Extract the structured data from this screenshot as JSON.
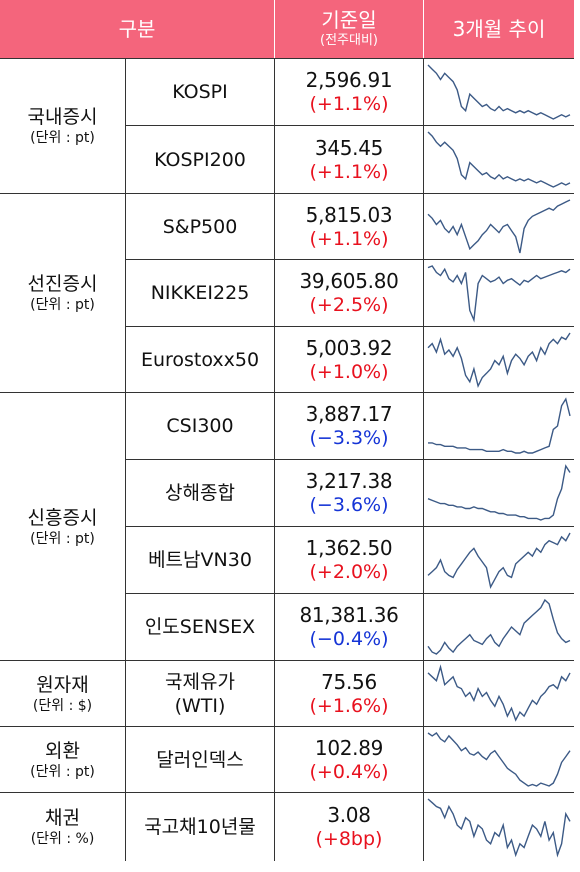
{
  "header": {
    "category_label": "구분",
    "value_label": "기준일",
    "value_sublabel": "(전주대비)",
    "trend_label": "3개월 추이"
  },
  "colors": {
    "header_bg": "#f4657c",
    "header_text": "#ffffff",
    "up": "#e8111e",
    "down": "#1534d6",
    "sparkline": "#3c5a86"
  },
  "groups": [
    {
      "name": "국내증시",
      "unit": "(단위 : pt)"
    },
    {
      "name": "선진증시",
      "unit": "(단위 : pt)"
    },
    {
      "name": "신흥증시",
      "unit": "(단위 : pt)"
    },
    {
      "name": "원자재",
      "unit": "(단위 : $)"
    },
    {
      "name": "외환",
      "unit": "(단위 : pt)"
    },
    {
      "name": "채권",
      "unit": "(단위 : %)"
    }
  ],
  "rows": [
    {
      "name": "KOSPI",
      "value": "2,596.91",
      "change": "(+1.1%)",
      "direction": "up",
      "trend": [
        62,
        60,
        58,
        55,
        58,
        56,
        54,
        50,
        42,
        40,
        48,
        46,
        44,
        42,
        43,
        41,
        40,
        42,
        40,
        41,
        40,
        39,
        40,
        39,
        40,
        39,
        38,
        39,
        38,
        37,
        36,
        37,
        38,
        37,
        38
      ]
    },
    {
      "name": "KOSPI200",
      "value": "345.45",
      "change": "(+1.1%)",
      "direction": "up",
      "trend": [
        62,
        60,
        57,
        55,
        57,
        55,
        53,
        49,
        41,
        39,
        47,
        45,
        43,
        41,
        42,
        40,
        39,
        41,
        39,
        40,
        39,
        38,
        39,
        38,
        39,
        38,
        37,
        38,
        37,
        36,
        35,
        36,
        37,
        36,
        37
      ]
    },
    {
      "name": "S&P500",
      "value": "5,815.03",
      "change": "(+1.1%)",
      "direction": "up",
      "trend": [
        55,
        53,
        50,
        52,
        48,
        46,
        49,
        45,
        50,
        44,
        38,
        40,
        42,
        45,
        47,
        50,
        48,
        46,
        49,
        50,
        47,
        44,
        36,
        48,
        52,
        54,
        55,
        56,
        57,
        58,
        57,
        59,
        60,
        61,
        62
      ]
    },
    {
      "name": "NIKKEI225",
      "value": "39,605.80",
      "change": "(+2.5%)",
      "direction": "up",
      "trend": [
        55,
        56,
        52,
        50,
        54,
        48,
        46,
        50,
        45,
        52,
        28,
        22,
        45,
        50,
        48,
        46,
        47,
        49,
        45,
        47,
        48,
        46,
        44,
        47,
        46,
        48,
        50,
        48,
        49,
        50,
        51,
        52,
        53,
        52,
        54
      ]
    },
    {
      "name": "Eurostoxx50",
      "value": "5,003.92",
      "change": "(+1.0%)",
      "direction": "up",
      "trend": [
        48,
        50,
        46,
        52,
        45,
        47,
        44,
        48,
        43,
        35,
        32,
        38,
        30,
        34,
        36,
        38,
        42,
        40,
        44,
        36,
        42,
        45,
        43,
        40,
        44,
        46,
        42,
        48,
        45,
        50,
        52,
        50,
        53,
        52,
        55
      ]
    },
    {
      "name": "CSI300",
      "value": "3,887.17",
      "change": "(−3.3%)",
      "direction": "down",
      "trend": [
        40,
        40,
        39,
        39,
        38,
        38,
        38,
        37,
        37,
        37,
        36,
        36,
        36,
        36,
        35,
        35,
        35,
        35,
        36,
        35,
        35,
        34,
        34,
        35,
        34,
        34,
        35,
        36,
        37,
        38,
        48,
        50,
        62,
        66,
        56
      ]
    },
    {
      "name": "상해종합",
      "value": "3,217.38",
      "change": "(−3.6%)",
      "direction": "down",
      "trend": [
        40,
        39,
        38,
        37,
        37,
        36,
        36,
        35,
        35,
        34,
        34,
        35,
        34,
        34,
        33,
        32,
        32,
        31,
        31,
        30,
        30,
        30,
        29,
        29,
        28,
        28,
        28,
        27,
        28,
        28,
        30,
        40,
        46,
        60,
        56
      ]
    },
    {
      "name": "베트남VN30",
      "value": "1,362.50",
      "change": "(+2.0%)",
      "direction": "up",
      "trend": [
        36,
        38,
        40,
        44,
        38,
        36,
        35,
        39,
        42,
        45,
        48,
        50,
        46,
        43,
        40,
        30,
        34,
        38,
        40,
        36,
        35,
        42,
        44,
        46,
        48,
        46,
        50,
        48,
        52,
        54,
        53,
        52,
        56,
        54,
        58
      ]
    },
    {
      "name": "인도SENSEX",
      "value": "81,381.36",
      "change": "(−0.4%)",
      "direction": "down",
      "trend": [
        38,
        35,
        34,
        36,
        40,
        37,
        35,
        38,
        40,
        42,
        44,
        41,
        40,
        39,
        42,
        44,
        40,
        38,
        42,
        45,
        48,
        46,
        44,
        50,
        52,
        54,
        56,
        58,
        62,
        60,
        52,
        45,
        42,
        40,
        41
      ]
    },
    {
      "name": "국제유가\n(WTI)",
      "value": "75.56",
      "change": "(+1.6%)",
      "direction": "up",
      "trend": [
        52,
        50,
        48,
        55,
        46,
        48,
        50,
        45,
        44,
        40,
        42,
        38,
        44,
        40,
        42,
        38,
        35,
        40,
        36,
        30,
        34,
        28,
        32,
        30,
        34,
        38,
        36,
        40,
        42,
        45,
        46,
        44,
        50,
        48,
        52
      ]
    },
    {
      "name": "달러인덱스",
      "value": "102.89",
      "change": "(+0.4%)",
      "direction": "up",
      "trend": [
        60,
        58,
        60,
        56,
        54,
        58,
        55,
        52,
        48,
        50,
        46,
        45,
        47,
        44,
        42,
        46,
        48,
        44,
        40,
        36,
        34,
        32,
        28,
        26,
        24,
        25,
        24,
        26,
        25,
        24,
        26,
        32,
        40,
        44,
        48
      ]
    },
    {
      "name": "국고채10년물",
      "value": "3.08",
      "change": "(+8bp)",
      "direction": "up",
      "trend": [
        60,
        58,
        56,
        55,
        50,
        56,
        52,
        46,
        44,
        50,
        48,
        40,
        46,
        44,
        38,
        36,
        42,
        40,
        46,
        34,
        38,
        30,
        36,
        34,
        40,
        46,
        44,
        40,
        48,
        38,
        42,
        30,
        36,
        52,
        48
      ]
    }
  ]
}
